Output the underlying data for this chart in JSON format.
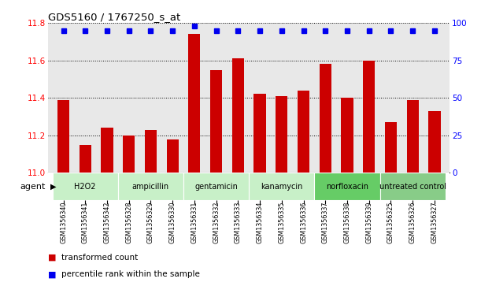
{
  "title": "GDS5160 / 1767250_s_at",
  "samples": [
    "GSM1356340",
    "GSM1356341",
    "GSM1356342",
    "GSM1356328",
    "GSM1356329",
    "GSM1356330",
    "GSM1356331",
    "GSM1356332",
    "GSM1356333",
    "GSM1356334",
    "GSM1356335",
    "GSM1356336",
    "GSM1356337",
    "GSM1356338",
    "GSM1356339",
    "GSM1356325",
    "GSM1356326",
    "GSM1356327"
  ],
  "transformed_count": [
    11.39,
    11.15,
    11.24,
    11.2,
    11.23,
    11.18,
    11.74,
    11.55,
    11.61,
    11.42,
    11.41,
    11.44,
    11.58,
    11.4,
    11.6,
    11.27,
    11.39,
    11.33
  ],
  "percentile_rank": [
    95,
    95,
    95,
    95,
    95,
    95,
    98,
    95,
    95,
    95,
    95,
    95,
    95,
    95,
    95,
    95,
    95,
    95
  ],
  "groups": [
    {
      "label": "H2O2",
      "start": 0,
      "end": 3,
      "color": "#c8f0c8"
    },
    {
      "label": "ampicillin",
      "start": 3,
      "end": 6,
      "color": "#c8f0c8"
    },
    {
      "label": "gentamicin",
      "start": 6,
      "end": 9,
      "color": "#c8f0c8"
    },
    {
      "label": "kanamycin",
      "start": 9,
      "end": 12,
      "color": "#c8f0c8"
    },
    {
      "label": "norfloxacin",
      "start": 12,
      "end": 15,
      "color": "#66cc66"
    },
    {
      "label": "untreated control",
      "start": 15,
      "end": 18,
      "color": "#88cc88"
    }
  ],
  "ylim_left": [
    11.0,
    11.8
  ],
  "ylim_right": [
    0,
    100
  ],
  "yticks_left": [
    11.0,
    11.2,
    11.4,
    11.6,
    11.8
  ],
  "yticks_right": [
    0,
    25,
    50,
    75,
    100
  ],
  "bar_color": "#cc0000",
  "dot_color": "#0000ee",
  "bar_width": 0.55,
  "plot_bg_color": "#e8e8e8",
  "legend_bar_label": "transformed count",
  "legend_dot_label": "percentile rank within the sample",
  "agent_label": "agent"
}
